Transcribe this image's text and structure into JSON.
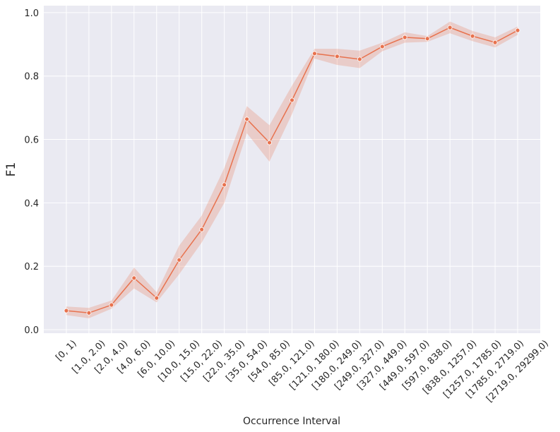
{
  "chart_data": {
    "type": "line",
    "x_label": "Occurrence Interval",
    "y_label": "F1",
    "categories": [
      "[0, 1)",
      "[1.0, 2.0)",
      "[2.0, 4.0)",
      "[4.0, 6.0)",
      "[6.0, 10.0)",
      "[10.0, 15.0)",
      "[15.0, 22.0)",
      "[22.0, 35.0)",
      "[35.0, 54.0)",
      "[54.0, 85.0)",
      "[85.0, 121.0)",
      "[121.0, 180.0)",
      "[180.0, 249.0)",
      "[249.0, 327.0)",
      "[327.0, 449.0)",
      "[449.0, 597.0)",
      "[597.0, 838.0)",
      "[838.0, 1257.0)",
      "[1257.0, 1785.0)",
      "[1785.0, 2719.0)",
      "[2719.0, 29299.0)"
    ],
    "values": [
      0.06,
      0.053,
      0.078,
      0.163,
      0.1,
      0.22,
      0.316,
      0.457,
      0.664,
      0.59,
      0.724,
      0.871,
      0.862,
      0.853,
      0.893,
      0.922,
      0.918,
      0.953,
      0.926,
      0.906,
      0.944
    ],
    "ci_lower": [
      0.046,
      0.036,
      0.066,
      0.13,
      0.086,
      0.175,
      0.275,
      0.4,
      0.62,
      0.53,
      0.68,
      0.855,
      0.835,
      0.825,
      0.878,
      0.905,
      0.908,
      0.935,
      0.91,
      0.89,
      0.93
    ],
    "ci_upper": [
      0.073,
      0.069,
      0.092,
      0.196,
      0.118,
      0.265,
      0.36,
      0.51,
      0.705,
      0.645,
      0.77,
      0.886,
      0.886,
      0.88,
      0.905,
      0.938,
      0.926,
      0.972,
      0.942,
      0.922,
      0.956
    ],
    "color": "#e8724e",
    "ylim": [
      -0.011,
      1.022
    ],
    "yticks": [
      {
        "value": 0,
        "label": "0.0"
      },
      0.2,
      0.4,
      0.6,
      0.8,
      {
        "value": 1,
        "label": "1.0"
      }
    ],
    "grid": true
  }
}
